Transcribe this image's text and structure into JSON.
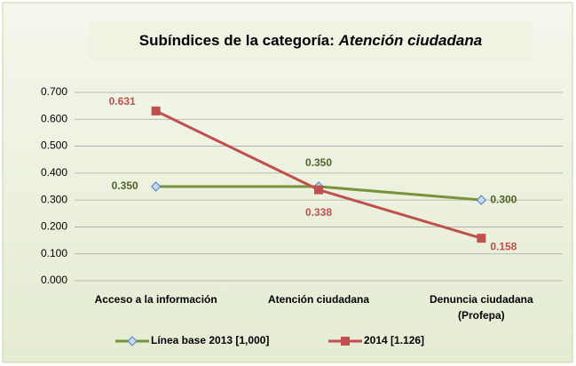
{
  "chart_data": {
    "type": "line",
    "title": "Subíndices de la categoría:",
    "title_emphasis": "Atención ciudadana",
    "categories": [
      "Acceso a la información",
      "Atención ciudadana",
      "Denuncia ciudadana (Profepa)"
    ],
    "series": [
      {
        "name": "Línea base 2013 [1,000]",
        "color": "#77933c",
        "marker_color": "#c6d9f1",
        "values": [
          0.35,
          0.35,
          0.3
        ],
        "value_labels": [
          "0.350",
          "0.350",
          "0.300"
        ]
      },
      {
        "name": "2014 [1.126]",
        "color": "#c0504d",
        "values": [
          0.631,
          0.338,
          0.158
        ],
        "value_labels": [
          "0.631",
          "0.338",
          "0.158"
        ]
      }
    ],
    "ylim": [
      0,
      0.7
    ],
    "yticks": [
      {
        "value": 0,
        "label": "0.000"
      },
      {
        "value": 0.1,
        "label": "0.100"
      },
      {
        "value": 0.2,
        "label": "0.200"
      },
      {
        "value": 0.3,
        "label": "0.300"
      },
      {
        "value": 0.4,
        "label": "0.400"
      },
      {
        "value": 0.5,
        "label": "0.500"
      },
      {
        "value": 0.6,
        "label": "0.600"
      },
      {
        "value": 0.7,
        "label": "0.700"
      }
    ],
    "grid": true,
    "legend": "bottom"
  }
}
